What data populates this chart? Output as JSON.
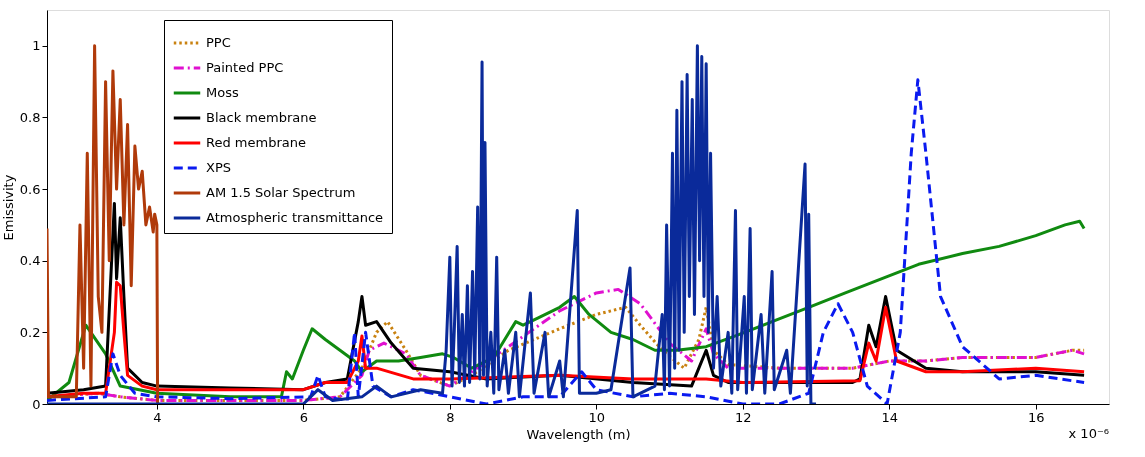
{
  "chart_data": {
    "type": "line",
    "xlabel": "Wavelength (m)",
    "ylabel": "Emissivity",
    "xlim": [
      2.5,
      17
    ],
    "xticks": [
      4,
      6,
      8,
      10,
      12,
      14,
      16
    ],
    "ylim": [
      0,
      1.1
    ],
    "yticks": [
      0,
      0.2,
      0.4,
      0.6,
      0.8,
      1
    ],
    "grid": false,
    "legend": "top left",
    "annotations": [
      "x 10⁻⁶"
    ],
    "series": [
      {
        "name": "PPC",
        "color": "#c98210",
        "line_style": "dotted",
        "x": [
          2.5,
          3.2,
          3.5,
          4,
          6,
          6.5,
          6.8,
          7.0,
          7.15,
          7.4,
          7.6,
          8.0,
          8.3,
          8.8,
          9.5,
          10.0,
          10.4,
          10.6,
          10.9,
          11.2,
          11.4,
          11.5,
          11.6,
          11.8,
          12.5,
          13.5,
          14.0,
          14.5,
          15,
          16,
          16.5,
          16.66
        ],
        "values": [
          0.02,
          0.03,
          0.02,
          0.01,
          0.01,
          0.02,
          0.1,
          0.2,
          0.23,
          0.15,
          0.08,
          0.05,
          0.08,
          0.15,
          0.21,
          0.25,
          0.27,
          0.22,
          0.15,
          0.1,
          0.18,
          0.27,
          0.15,
          0.11,
          0.1,
          0.1,
          0.12,
          0.12,
          0.13,
          0.13,
          0.15,
          0.15
        ]
      },
      {
        "name": "Painted PPC",
        "color": "#e010d0",
        "line_style": "dashdot",
        "x": [
          2.5,
          3.2,
          3.5,
          4,
          6,
          6.5,
          6.8,
          6.9,
          7.1,
          7.4,
          7.6,
          8.0,
          8.3,
          8.8,
          9.5,
          10.0,
          10.3,
          10.6,
          11.0,
          11.3,
          11.5,
          11.6,
          11.8,
          12.5,
          13.5,
          14.0,
          14.5,
          15,
          16,
          16.5,
          16.66
        ],
        "values": [
          0.02,
          0.03,
          0.02,
          0.01,
          0.01,
          0.02,
          0.08,
          0.15,
          0.17,
          0.14,
          0.08,
          0.05,
          0.09,
          0.16,
          0.26,
          0.31,
          0.32,
          0.28,
          0.17,
          0.12,
          0.21,
          0.14,
          0.1,
          0.1,
          0.1,
          0.12,
          0.12,
          0.13,
          0.13,
          0.15,
          0.14
        ]
      },
      {
        "name": "Moss",
        "color": "#108a10",
        "line_style": "solid",
        "x": [
          2.5,
          2.8,
          3.03,
          3.3,
          3.5,
          4,
          5,
          5.7,
          5.77,
          5.85,
          6.0,
          6.12,
          6.3,
          6.5,
          6.7,
          6.8,
          7.0,
          7.3,
          7.6,
          7.9,
          8.05,
          8.3,
          8.6,
          8.9,
          9.0,
          9.2,
          9.5,
          9.7,
          9.9,
          10.2,
          10.5,
          10.8,
          11.1,
          11.5,
          11.9,
          12.4,
          12.9,
          13.4,
          13.9,
          14.4,
          15.0,
          15.5,
          16.0,
          16.4,
          16.6,
          16.66
        ],
        "values": [
          0.01,
          0.06,
          0.22,
          0.14,
          0.05,
          0.03,
          0.02,
          0.02,
          0.09,
          0.07,
          0.15,
          0.21,
          0.18,
          0.15,
          0.12,
          0.09,
          0.12,
          0.12,
          0.13,
          0.14,
          0.13,
          0.1,
          0.13,
          0.23,
          0.22,
          0.24,
          0.27,
          0.3,
          0.25,
          0.2,
          0.18,
          0.15,
          0.15,
          0.16,
          0.19,
          0.23,
          0.27,
          0.31,
          0.35,
          0.39,
          0.42,
          0.44,
          0.47,
          0.5,
          0.51,
          0.49
        ]
      },
      {
        "name": "Black membrane",
        "color": "#000000",
        "line_style": "solid",
        "x": [
          2.5,
          3.0,
          3.3,
          3.42,
          3.45,
          3.5,
          3.55,
          3.6,
          3.8,
          4,
          5,
          6,
          6.3,
          6.6,
          6.75,
          6.8,
          6.85,
          7.0,
          7.2,
          7.5,
          8.0,
          8.5,
          9.5,
          10.5,
          11.3,
          11.4,
          11.5,
          11.6,
          11.8,
          13.5,
          13.6,
          13.72,
          13.82,
          13.95,
          14.1,
          14.5,
          15,
          16,
          16.66
        ],
        "values": [
          0.03,
          0.04,
          0.05,
          0.56,
          0.35,
          0.52,
          0.3,
          0.1,
          0.06,
          0.05,
          0.045,
          0.04,
          0.06,
          0.07,
          0.23,
          0.3,
          0.22,
          0.23,
          0.17,
          0.1,
          0.09,
          0.07,
          0.08,
          0.06,
          0.05,
          0.1,
          0.15,
          0.08,
          0.06,
          0.06,
          0.07,
          0.22,
          0.16,
          0.3,
          0.15,
          0.1,
          0.09,
          0.09,
          0.08
        ]
      },
      {
        "name": "Red membrane",
        "color": "#ff0000",
        "line_style": "solid",
        "x": [
          2.5,
          3.0,
          3.3,
          3.42,
          3.45,
          3.5,
          3.55,
          3.6,
          3.8,
          4,
          5,
          6,
          6.3,
          6.6,
          6.75,
          6.8,
          6.85,
          7.0,
          7.5,
          8.0,
          9.5,
          10.5,
          11.5,
          12.0,
          13.6,
          13.72,
          13.82,
          13.95,
          14.1,
          14.5,
          15,
          16,
          16.66
        ],
        "values": [
          0.02,
          0.03,
          0.03,
          0.2,
          0.34,
          0.33,
          0.2,
          0.08,
          0.05,
          0.04,
          0.04,
          0.04,
          0.06,
          0.06,
          0.12,
          0.19,
          0.1,
          0.1,
          0.07,
          0.07,
          0.08,
          0.07,
          0.07,
          0.06,
          0.065,
          0.17,
          0.12,
          0.27,
          0.12,
          0.09,
          0.09,
          0.1,
          0.09
        ]
      },
      {
        "name": "XPS",
        "color": "#0a1af0",
        "line_style": "dashed",
        "x": [
          2.5,
          3.3,
          3.4,
          3.5,
          3.7,
          4,
          5,
          6.1,
          6.2,
          6.3,
          6.6,
          6.7,
          6.75,
          6.85,
          6.95,
          7.2,
          7.5,
          8,
          8.5,
          9,
          9.5,
          9.8,
          10,
          10.5,
          11,
          11.5,
          12,
          12.5,
          12.9,
          13.1,
          13.3,
          13.5,
          13.7,
          13.97,
          14.15,
          14.3,
          14.39,
          14.5,
          14.7,
          15,
          15.5,
          16,
          16.66
        ],
        "values": [
          0.01,
          0.02,
          0.14,
          0.08,
          0.03,
          0.02,
          0.015,
          0.02,
          0.08,
          0.02,
          0.01,
          0.2,
          0.02,
          0.2,
          0.05,
          0.02,
          0.04,
          0.02,
          0.0,
          0.02,
          0.02,
          0.09,
          0.04,
          0.02,
          0.03,
          0.02,
          0.0,
          0.0,
          0.03,
          0.2,
          0.28,
          0.2,
          0.05,
          0.0,
          0.2,
          0.7,
          0.905,
          0.7,
          0.3,
          0.16,
          0.07,
          0.08,
          0.06
        ]
      },
      {
        "name": "AM 1.5 Solar Spectrum",
        "color": "#b03a0a",
        "line_style": "solid",
        "x": [
          2.5,
          2.52,
          2.9,
          2.95,
          3.0,
          3.05,
          3.1,
          3.15,
          3.2,
          3.25,
          3.3,
          3.35,
          3.4,
          3.45,
          3.5,
          3.55,
          3.6,
          3.65,
          3.7,
          3.75,
          3.8,
          3.85,
          3.9,
          3.95,
          3.97,
          4.0,
          4.01
        ],
        "values": [
          0.49,
          0.02,
          0.02,
          0.5,
          0.1,
          0.7,
          0.05,
          1.0,
          0.3,
          0.2,
          0.9,
          0.4,
          0.93,
          0.6,
          0.85,
          0.5,
          0.78,
          0.33,
          0.72,
          0.6,
          0.65,
          0.5,
          0.55,
          0.48,
          0.53,
          0.5,
          0.0
        ]
      },
      {
        "name": "Atmospheric transmittance",
        "color": "#0a2a9a",
        "line_style": "solid",
        "x": [
          2.5,
          6.0,
          6.2,
          6.4,
          6.8,
          7.0,
          7.2,
          7.6,
          7.9,
          7.95,
          8.0,
          8.03,
          8.06,
          8.1,
          8.13,
          8.17,
          8.2,
          8.24,
          8.27,
          8.31,
          8.34,
          8.38,
          8.41,
          8.44,
          8.46,
          8.48,
          8.51,
          8.56,
          8.6,
          8.64,
          8.67,
          8.75,
          8.8,
          8.9,
          8.95,
          9.1,
          9.15,
          9.3,
          9.35,
          9.5,
          9.55,
          9.74,
          9.77,
          10.0,
          10.2,
          10.46,
          10.5,
          10.8,
          10.9,
          10.93,
          10.96,
          11.0,
          11.04,
          11.07,
          11.1,
          11.13,
          11.17,
          11.2,
          11.24,
          11.27,
          11.31,
          11.34,
          11.38,
          11.41,
          11.44,
          11.47,
          11.5,
          11.53,
          11.56,
          11.6,
          11.65,
          11.7,
          11.8,
          11.85,
          11.9,
          11.93,
          12.02,
          12.05,
          12.1,
          12.13,
          12.25,
          12.3,
          12.4,
          12.43,
          12.6,
          12.65,
          12.85,
          12.88,
          12.9,
          12.93,
          13.0
        ],
        "values": [
          0,
          0.0,
          0.04,
          0.01,
          0.02,
          0.05,
          0.02,
          0.04,
          0.03,
          0.15,
          0.41,
          0.05,
          0.2,
          0.44,
          0.06,
          0.25,
          0.05,
          0.33,
          0.06,
          0.37,
          0.08,
          0.55,
          0.07,
          0.955,
          0.08,
          0.73,
          0.05,
          0.2,
          0.03,
          0.41,
          0.04,
          0.15,
          0.03,
          0.2,
          0.02,
          0.31,
          0.03,
          0.2,
          0.02,
          0.12,
          0.02,
          0.54,
          0.03,
          0.03,
          0.04,
          0.38,
          0.02,
          0.05,
          0.25,
          0.04,
          0.5,
          0.05,
          0.7,
          0.1,
          0.82,
          0.15,
          0.9,
          0.2,
          0.92,
          0.3,
          0.85,
          0.25,
          1.0,
          0.4,
          0.97,
          0.3,
          0.95,
          0.2,
          0.7,
          0.1,
          0.3,
          0.05,
          0.2,
          0.03,
          0.54,
          0.04,
          0.3,
          0.03,
          0.49,
          0.04,
          0.25,
          0.03,
          0.37,
          0.04,
          0.15,
          0.03,
          0.67,
          0.05,
          0.53,
          0.0,
          0.0
        ]
      }
    ]
  }
}
